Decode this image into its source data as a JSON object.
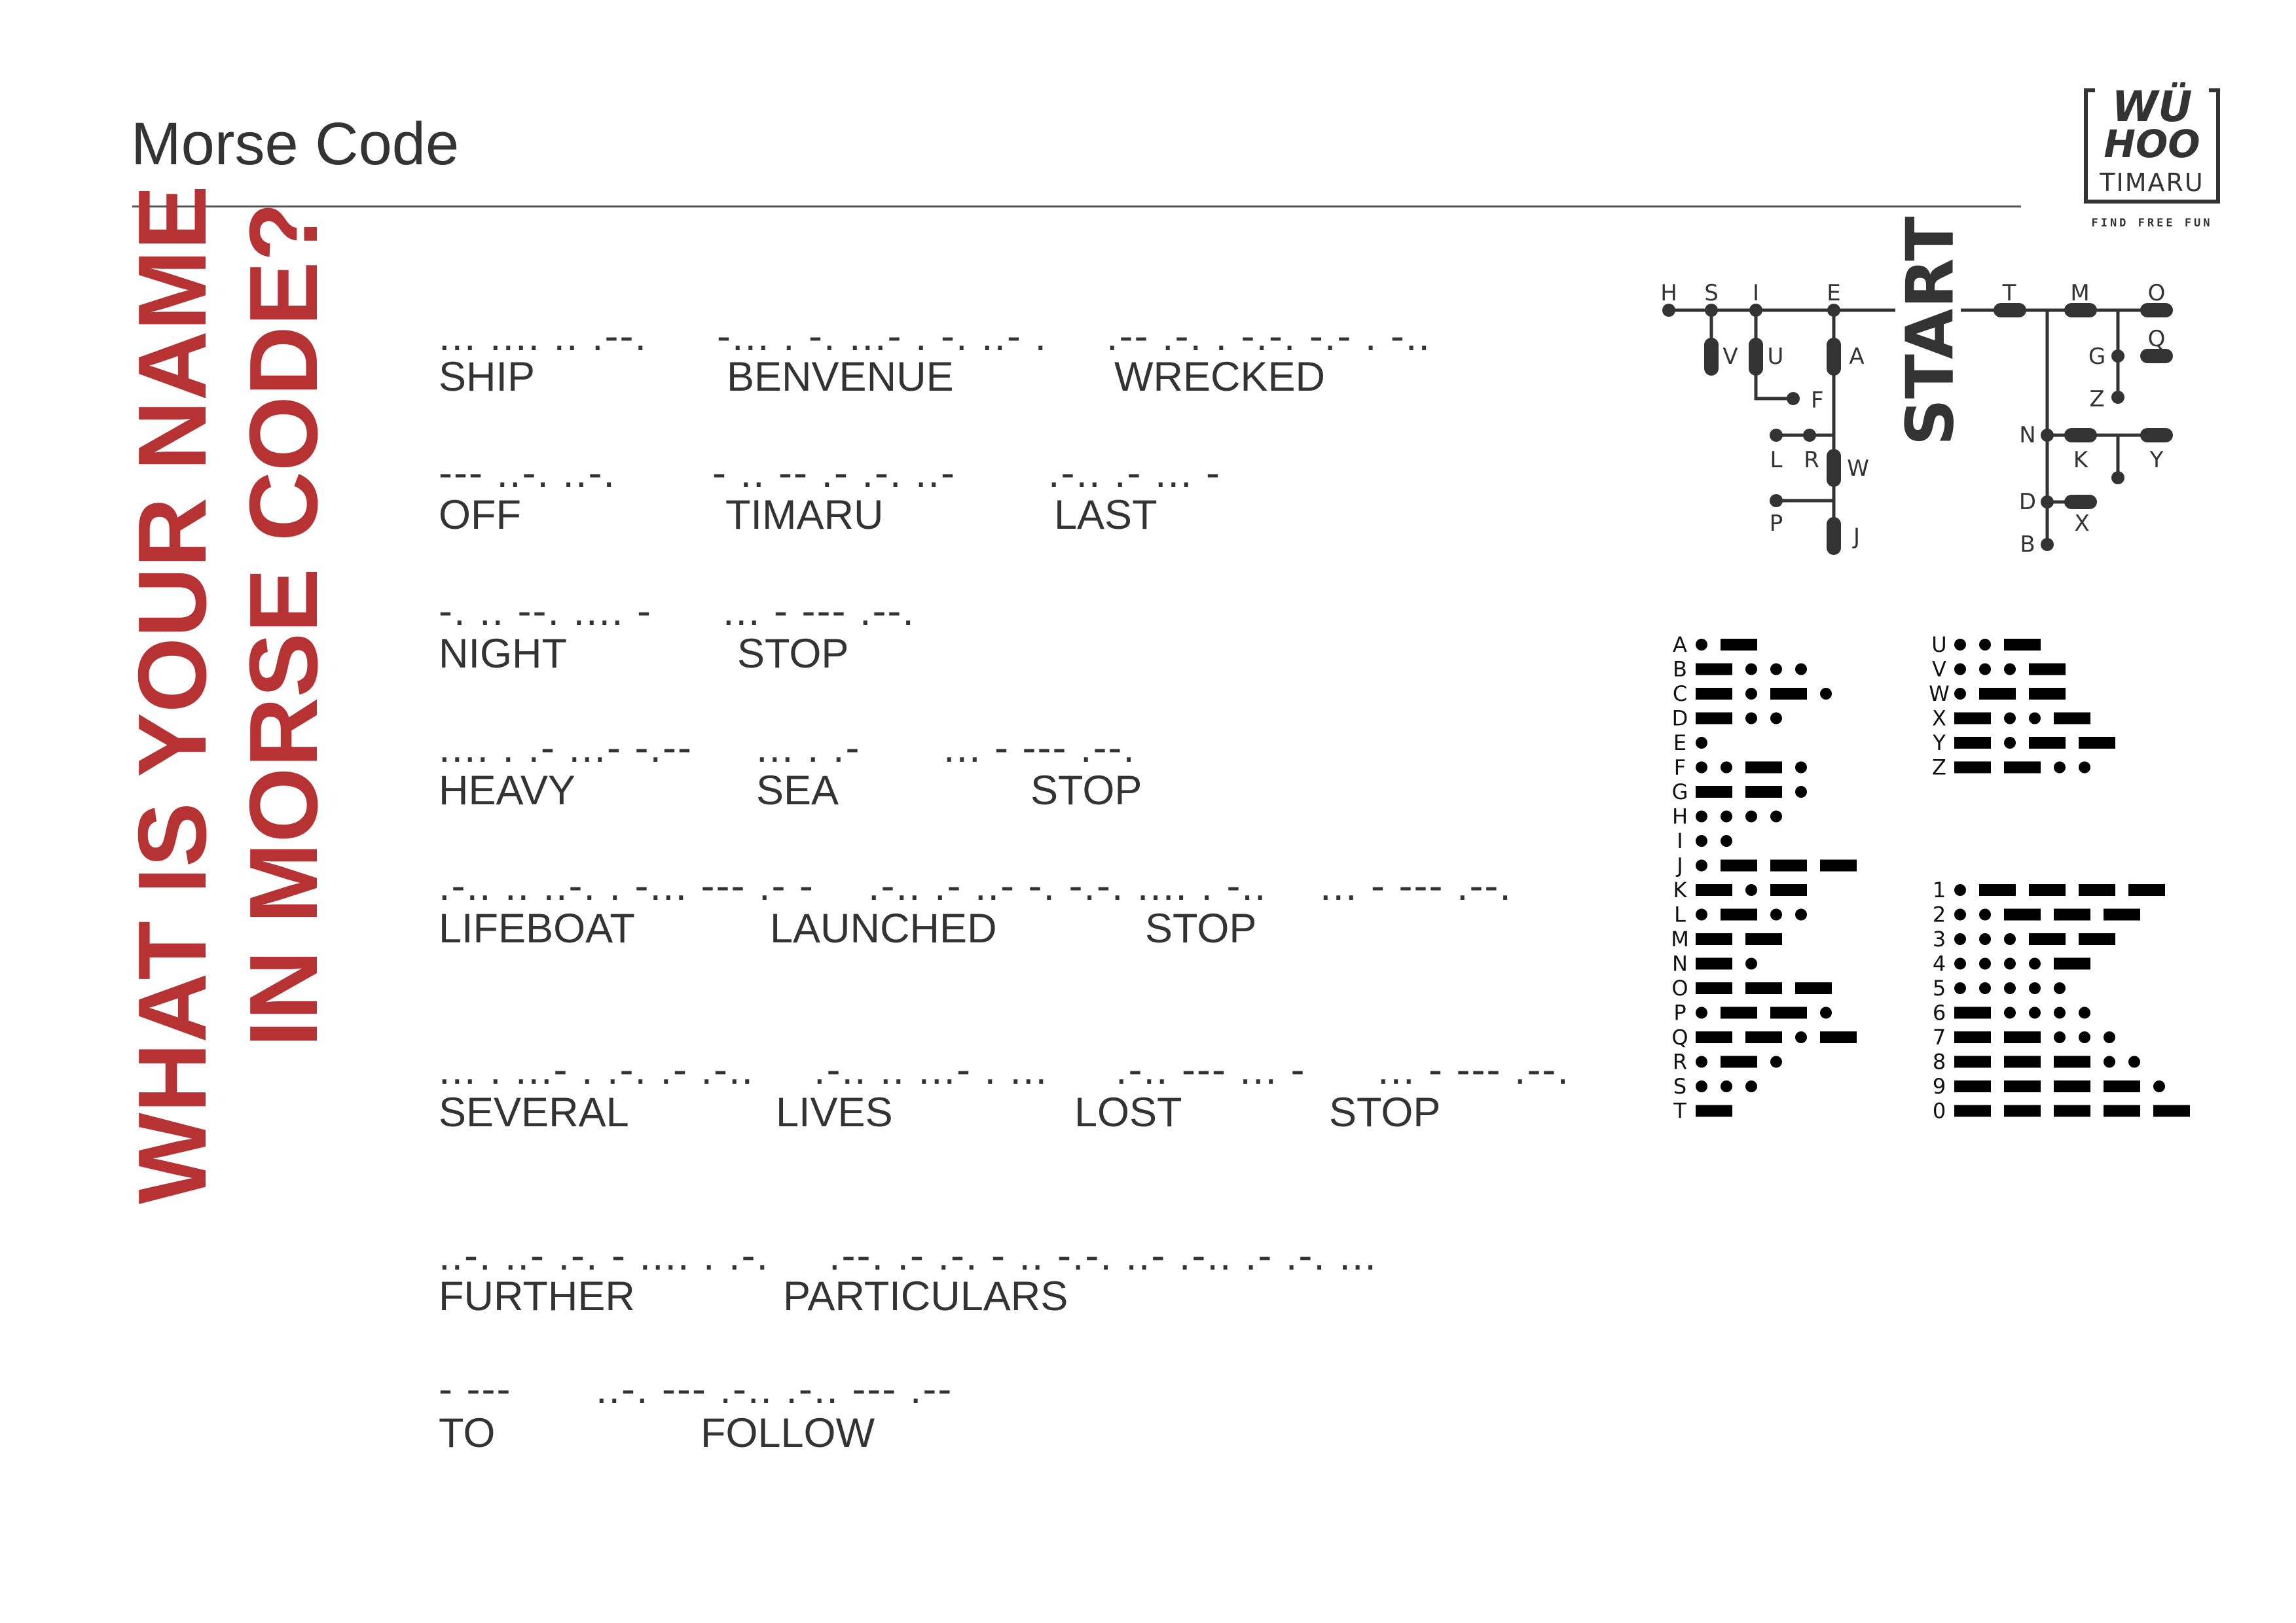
{
  "header": {
    "title": "Morse Code"
  },
  "logo": {
    "line1": "WÜ",
    "line2": "HOO",
    "line3": "TIMARU",
    "tagline": "FIND FREE FUN"
  },
  "question": {
    "line1": "WHAT IS YOUR NAME",
    "line2": "IN MORSE CODE?"
  },
  "message": [
    {
      "morse": "... .... .. .--.",
      "word": "SHIP"
    },
    {
      "morse": "-... . -. ...- . -. ..- .",
      "word": "BENVENUE"
    },
    {
      "morse": ".-- .-. . -.-. -.- . -..",
      "word": "WRECKED"
    },
    {
      "morse": "--- ..-. ..-.",
      "word": "OFF"
    },
    {
      "morse": "- .. -- .- .-. ..-",
      "word": "TIMARU"
    },
    {
      "morse": ".-.. .- ... -",
      "word": "LAST"
    },
    {
      "morse": "-. .. --. .... -",
      "word": "NIGHT"
    },
    {
      "morse": "... - --- .--.",
      "word": "STOP"
    },
    {
      "morse": ".... . .- ...- -.--",
      "word": "HEAVY"
    },
    {
      "morse": "... . .-",
      "word": "SEA"
    },
    {
      "morse": "... - --- .--.",
      "word": "STOP"
    },
    {
      "morse": ".-.. .. ..-. . -... --- .- -",
      "word": "LIFEBOAT"
    },
    {
      "morse": ".-.. .- ..- -. -.-. .... . -..",
      "word": "LAUNCHED"
    },
    {
      "morse": "... - --- .--.",
      "word": "STOP"
    },
    {
      "morse": "... . ...- . .-. .- .-..",
      "word": "SEVERAL"
    },
    {
      "morse": ".-.. .. ...- . ...",
      "word": "LIVES"
    },
    {
      "morse": ".-.. --- ... -",
      "word": "LOST"
    },
    {
      "morse": "... - --- .--.",
      "word": "STOP"
    },
    {
      "morse": "..-. ..- .-. - .... . .-.",
      "word": "FURTHER"
    },
    {
      "morse": ".--. .- .-. - .. -.-. ..- .-.. .- .-. ...",
      "word": "PARTICULARS"
    },
    {
      "morse": "- ---",
      "word": "TO"
    },
    {
      "morse": "..-. --- .-.. .-.. --- .--",
      "word": "FOLLOW"
    }
  ],
  "tree": {
    "start": "START",
    "labels": {
      "H": "H",
      "S": "S",
      "I": "I",
      "E": "E",
      "V": "V",
      "U": "U",
      "A": "A",
      "F": "F",
      "L": "L",
      "R": "R",
      "W": "W",
      "P": "P",
      "J": "J",
      "T": "T",
      "M": "M",
      "O": "O",
      "Q": "Q",
      "G": "G",
      "Z": "Z",
      "N": "N",
      "K": "K",
      "Y": "Y",
      "D": "D",
      "X": "X",
      "B": "B"
    }
  },
  "chart": {
    "letters_a_t": [
      {
        "label": "A",
        "code": ".-"
      },
      {
        "label": "B",
        "code": "-..."
      },
      {
        "label": "C",
        "code": "-.-."
      },
      {
        "label": "D",
        "code": "-.."
      },
      {
        "label": "E",
        "code": "."
      },
      {
        "label": "F",
        "code": "..-."
      },
      {
        "label": "G",
        "code": "--."
      },
      {
        "label": "H",
        "code": "...."
      },
      {
        "label": "I",
        "code": ".."
      },
      {
        "label": "J",
        "code": ".---"
      },
      {
        "label": "K",
        "code": "-.-"
      },
      {
        "label": "L",
        "code": ".-.."
      },
      {
        "label": "M",
        "code": "--"
      },
      {
        "label": "N",
        "code": "-."
      },
      {
        "label": "O",
        "code": "---"
      },
      {
        "label": "P",
        "code": ".--."
      },
      {
        "label": "Q",
        "code": "--.-"
      },
      {
        "label": "R",
        "code": ".-."
      },
      {
        "label": "S",
        "code": "..."
      },
      {
        "label": "T",
        "code": "-"
      }
    ],
    "letters_u_z": [
      {
        "label": "U",
        "code": "..-"
      },
      {
        "label": "V",
        "code": "...-"
      },
      {
        "label": "W",
        "code": ".--"
      },
      {
        "label": "X",
        "code": "-..-"
      },
      {
        "label": "Y",
        "code": "-.--"
      },
      {
        "label": "Z",
        "code": "--.."
      }
    ],
    "digits": [
      {
        "label": "1",
        "code": ".----"
      },
      {
        "label": "2",
        "code": "..---"
      },
      {
        "label": "3",
        "code": "...--"
      },
      {
        "label": "4",
        "code": "....-"
      },
      {
        "label": "5",
        "code": "....."
      },
      {
        "label": "6",
        "code": "-...."
      },
      {
        "label": "7",
        "code": "--..."
      },
      {
        "label": "8",
        "code": "---.."
      },
      {
        "label": "9",
        "code": "----."
      },
      {
        "label": "0",
        "code": "-----"
      }
    ]
  },
  "colors": {
    "accent": "#b73233",
    "ink": "#333333"
  }
}
